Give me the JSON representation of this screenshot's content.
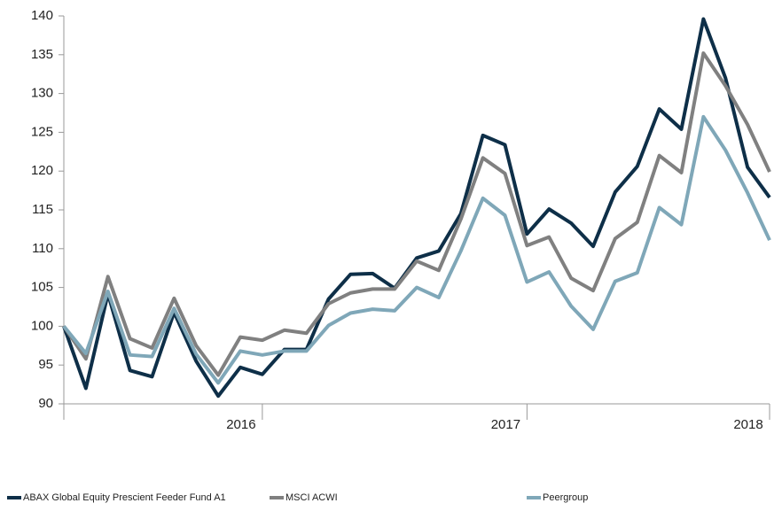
{
  "chart_data": {
    "type": "line",
    "categories": [
      null,
      null,
      null,
      null,
      null,
      null,
      null,
      null,
      null,
      "2016",
      null,
      null,
      null,
      null,
      null,
      null,
      null,
      null,
      null,
      null,
      null,
      "2017",
      null,
      null,
      null,
      null,
      null,
      null,
      null,
      null,
      null,
      null,
      "2018"
    ],
    "series": [
      {
        "name": "ABAX Global Equity Prescient Feeder Fund A1",
        "color": "#0e2f48",
        "values": [
          100,
          92,
          104.2,
          94.3,
          93.5,
          101.8,
          95.5,
          91,
          94.7,
          93.8,
          97,
          97,
          103.5,
          106.7,
          106.8,
          104.9,
          108.8,
          109.7,
          114.5,
          124.6,
          123.4,
          111.9,
          115.1,
          113.3,
          110.3,
          117.3,
          120.6,
          128,
          125.4,
          139.6,
          132,
          120.5,
          116.6
        ]
      },
      {
        "name": "MSCI ACWI",
        "color": "#808080",
        "values": [
          100,
          95.8,
          106.4,
          98.4,
          97.2,
          103.6,
          97.5,
          93.7,
          98.6,
          98.2,
          99.5,
          99.1,
          102.9,
          104.3,
          104.8,
          104.8,
          108.4,
          107.2,
          113.8,
          121.7,
          119.7,
          110.4,
          111.5,
          106.2,
          104.6,
          111.3,
          113.4,
          122,
          119.8,
          135.2,
          131,
          126,
          119.9
        ]
      },
      {
        "name": "Peergroup",
        "color": "#7fa7b8",
        "values": [
          100,
          96.5,
          104.5,
          96.3,
          96.1,
          102.3,
          96.4,
          92.7,
          96.8,
          96.3,
          96.8,
          96.8,
          100.1,
          101.7,
          102.2,
          102,
          105,
          103.7,
          109.7,
          116.5,
          114.3,
          105.7,
          107,
          102.6,
          99.6,
          105.8,
          106.9,
          115.3,
          113.1,
          127,
          122.7,
          117.2,
          111.1
        ]
      }
    ],
    "ylim": [
      90,
      140
    ],
    "yticks": [
      90,
      95,
      100,
      105,
      110,
      115,
      120,
      125,
      130,
      135,
      140
    ],
    "grid": false
  }
}
